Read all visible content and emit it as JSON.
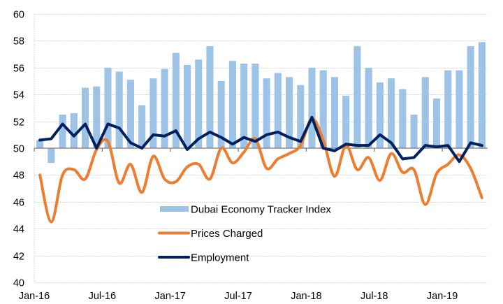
{
  "chart_data": {
    "type": "bar+line",
    "title": "",
    "xlabel": "",
    "ylabel": "",
    "ylim": [
      40,
      60
    ],
    "yticks": [
      "40",
      "42",
      "44",
      "46",
      "48",
      "50",
      "52",
      "54",
      "56",
      "58",
      "60"
    ],
    "x_axis_crosses_at": 50,
    "grid": true,
    "legend_position": "inside-bottom-center",
    "x": [
      "Jan-16",
      "Feb-16",
      "Mar-16",
      "Apr-16",
      "May-16",
      "Jun-16",
      "Jul-16",
      "Aug-16",
      "Sep-16",
      "Oct-16",
      "Nov-16",
      "Dec-16",
      "Jan-17",
      "Feb-17",
      "Mar-17",
      "Apr-17",
      "May-17",
      "Jun-17",
      "Jul-17",
      "Aug-17",
      "Sep-17",
      "Oct-17",
      "Nov-17",
      "Dec-17",
      "Jan-18",
      "Feb-18",
      "Mar-18",
      "Apr-18",
      "May-18",
      "Jun-18",
      "Jul-18",
      "Aug-18",
      "Sep-18",
      "Oct-18",
      "Nov-18",
      "Dec-18",
      "Jan-19",
      "Feb-19",
      "Mar-19",
      "Apr-19"
    ],
    "xtick_labels": [
      "Jan-16",
      "Jul-16",
      "Jan-17",
      "Jul-17",
      "Jan-18",
      "Jul-18",
      "Jan-19"
    ],
    "xtick_every": 6,
    "series": [
      {
        "name": "Dubai Economy Tracker Index",
        "kind": "bar",
        "color": "#9DC3E6",
        "values": [
          50.6,
          48.9,
          52.5,
          52.6,
          54.5,
          54.6,
          56.0,
          55.7,
          55.1,
          53.2,
          55.2,
          55.9,
          57.1,
          56.2,
          56.6,
          57.6,
          55.0,
          56.5,
          56.3,
          56.3,
          55.2,
          55.6,
          55.3,
          54.7,
          56.0,
          55.8,
          55.3,
          53.9,
          57.6,
          56.0,
          54.9,
          55.2,
          54.4,
          52.5,
          55.3,
          53.7,
          55.8,
          55.8,
          57.6,
          57.9
        ]
      },
      {
        "name": "Prices Charged",
        "kind": "line",
        "smooth": true,
        "color": "#ED7D31",
        "values": [
          48.0,
          44.5,
          48.0,
          48.4,
          47.7,
          49.9,
          50.5,
          47.4,
          48.8,
          46.7,
          49.4,
          47.7,
          47.5,
          48.6,
          48.8,
          47.7,
          50.0,
          48.9,
          49.7,
          50.7,
          48.5,
          49.2,
          49.6,
          50.2,
          52.2,
          50.6,
          47.9,
          50.2,
          48.4,
          49.3,
          47.6,
          49.6,
          48.2,
          48.4,
          45.8,
          48.1,
          48.8,
          49.5,
          48.5,
          46.3
        ]
      },
      {
        "name": "Employment",
        "kind": "line",
        "smooth": false,
        "color": "#002060",
        "values": [
          50.6,
          50.7,
          51.8,
          50.9,
          51.8,
          50.0,
          51.8,
          51.5,
          50.4,
          50.0,
          51.0,
          50.9,
          51.3,
          49.9,
          50.7,
          51.2,
          50.8,
          50.3,
          50.8,
          50.5,
          51.0,
          51.2,
          50.8,
          50.5,
          52.3,
          50.0,
          49.8,
          50.3,
          50.2,
          50.2,
          51.0,
          50.4,
          49.2,
          49.3,
          50.2,
          50.1,
          50.2,
          49.0,
          50.4,
          50.2
        ]
      }
    ]
  }
}
